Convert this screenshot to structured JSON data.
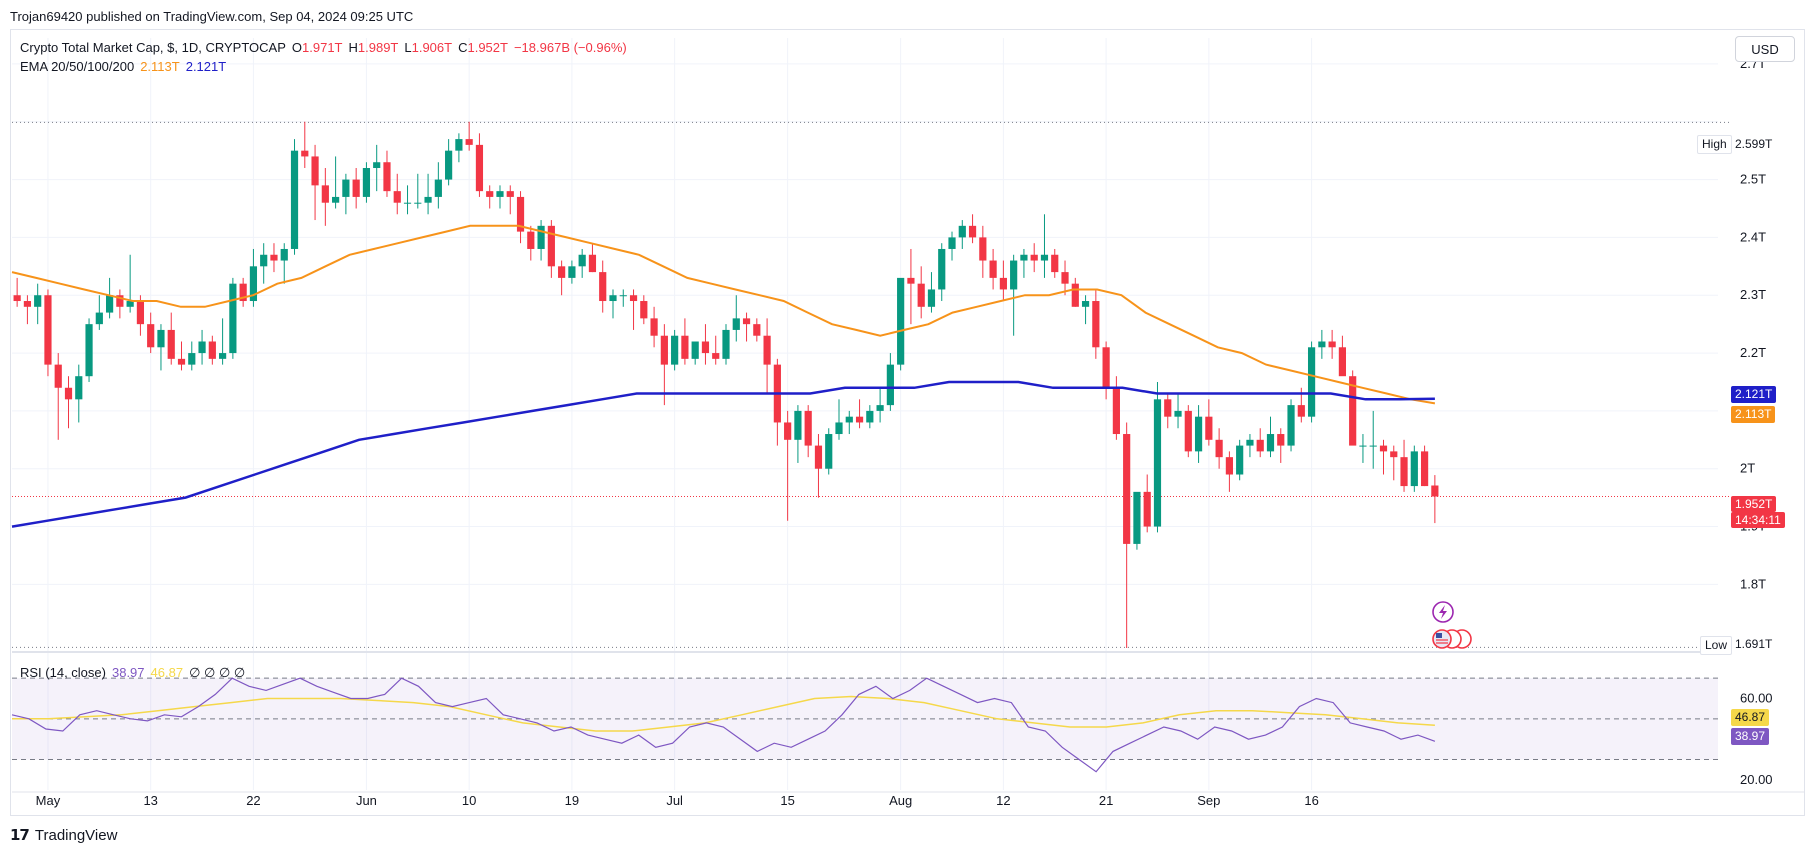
{
  "header": {
    "published": "Trojan69420 published on TradingView.com, Sep 04, 2024 09:25 UTC"
  },
  "legend": {
    "symbol": "Crypto Total Market Cap, $, 1D, CRYPTOCAP",
    "o_label": "O",
    "o_value": "1.971T",
    "h_label": "H",
    "h_value": "1.989T",
    "l_label": "L",
    "l_value": "1.906T",
    "c_label": "C",
    "c_value": "1.952T",
    "change": "−18.967B (−0.96%)",
    "ema_label": "EMA 20/50/100/200",
    "ema1_value": "2.113T",
    "ema2_value": "2.121T",
    "rsi_label": "RSI (14, close)",
    "rsi_value": "38.97",
    "rsi_ma_value": "46.87",
    "rsi_extra": "∅ ∅ ∅ ∅"
  },
  "currency_button": "USD",
  "price_axis": {
    "ticks": [
      "2.7T",
      "2.5T",
      "2.4T",
      "2.3T",
      "2.2T",
      "2T",
      "1.9T",
      "1.8T"
    ],
    "high_label": "High",
    "high_value": "2.599T",
    "low_label": "Low",
    "low_value": "1.691T",
    "ema200_tag": "2.121T",
    "ema50_tag": "2.113T",
    "last_price_tag": "1.952T",
    "countdown": "14:34:11"
  },
  "rsi_axis": {
    "ticks": [
      "60.00",
      "20.00"
    ],
    "ma_tag": "46.87",
    "rsi_tag": "38.97"
  },
  "time_axis": {
    "labels": [
      "May",
      "13",
      "22",
      "Jun",
      "10",
      "19",
      "Jul",
      "15",
      "Aug",
      "12",
      "21",
      "Sep",
      "16"
    ]
  },
  "footer": {
    "brand": "TradingView"
  },
  "colors": {
    "up": "#089981",
    "down": "#f23645",
    "ema50": "#f7931a",
    "ema200": "#1f1fc8",
    "rsi": "#7e57c2",
    "rsi_ma": "#f5d84a"
  },
  "chart_data": {
    "type": "candlestick",
    "title": "Crypto Total Market Cap, $, 1D, CRYPTOCAP",
    "x_range": [
      "2024-04-28",
      "2024-09-04"
    ],
    "y_range_trillions": [
      1.69,
      2.75
    ],
    "candles_trillions_ohlc": [
      [
        2.3,
        2.33,
        2.28,
        2.29
      ],
      [
        2.29,
        2.3,
        2.25,
        2.28
      ],
      [
        2.28,
        2.32,
        2.25,
        2.3
      ],
      [
        2.3,
        2.31,
        2.16,
        2.18
      ],
      [
        2.18,
        2.2,
        2.05,
        2.14
      ],
      [
        2.14,
        2.16,
        2.07,
        2.12
      ],
      [
        2.12,
        2.18,
        2.08,
        2.16
      ],
      [
        2.16,
        2.26,
        2.15,
        2.25
      ],
      [
        2.25,
        2.3,
        2.24,
        2.27
      ],
      [
        2.27,
        2.33,
        2.26,
        2.3
      ],
      [
        2.3,
        2.31,
        2.26,
        2.28
      ],
      [
        2.28,
        2.37,
        2.27,
        2.29
      ],
      [
        2.29,
        2.3,
        2.23,
        2.25
      ],
      [
        2.25,
        2.27,
        2.2,
        2.21
      ],
      [
        2.21,
        2.25,
        2.17,
        2.24
      ],
      [
        2.24,
        2.27,
        2.18,
        2.19
      ],
      [
        2.19,
        2.22,
        2.17,
        2.18
      ],
      [
        2.18,
        2.22,
        2.17,
        2.2
      ],
      [
        2.2,
        2.24,
        2.18,
        2.22
      ],
      [
        2.22,
        2.23,
        2.18,
        2.19
      ],
      [
        2.19,
        2.26,
        2.18,
        2.2
      ],
      [
        2.2,
        2.33,
        2.19,
        2.32
      ],
      [
        2.32,
        2.33,
        2.28,
        2.29
      ],
      [
        2.29,
        2.38,
        2.28,
        2.35
      ],
      [
        2.35,
        2.39,
        2.32,
        2.37
      ],
      [
        2.37,
        2.39,
        2.34,
        2.36
      ],
      [
        2.36,
        2.39,
        2.32,
        2.38
      ],
      [
        2.38,
        2.57,
        2.37,
        2.55
      ],
      [
        2.55,
        2.6,
        2.52,
        2.54
      ],
      [
        2.54,
        2.56,
        2.43,
        2.49
      ],
      [
        2.49,
        2.52,
        2.42,
        2.46
      ],
      [
        2.46,
        2.54,
        2.45,
        2.47
      ],
      [
        2.47,
        2.51,
        2.44,
        2.5
      ],
      [
        2.5,
        2.52,
        2.45,
        2.47
      ],
      [
        2.47,
        2.53,
        2.46,
        2.52
      ],
      [
        2.52,
        2.56,
        2.48,
        2.53
      ],
      [
        2.53,
        2.55,
        2.47,
        2.48
      ],
      [
        2.48,
        2.51,
        2.44,
        2.46
      ],
      [
        2.46,
        2.49,
        2.44,
        2.46
      ],
      [
        2.46,
        2.51,
        2.45,
        2.46
      ],
      [
        2.46,
        2.51,
        2.44,
        2.47
      ],
      [
        2.47,
        2.53,
        2.45,
        2.5
      ],
      [
        2.5,
        2.57,
        2.49,
        2.55
      ],
      [
        2.55,
        2.58,
        2.53,
        2.57
      ],
      [
        2.57,
        2.6,
        2.55,
        2.56
      ],
      [
        2.56,
        2.58,
        2.47,
        2.48
      ],
      [
        2.48,
        2.49,
        2.45,
        2.47
      ],
      [
        2.47,
        2.49,
        2.45,
        2.48
      ],
      [
        2.48,
        2.49,
        2.44,
        2.47
      ],
      [
        2.47,
        2.48,
        2.39,
        2.41
      ],
      [
        2.41,
        2.42,
        2.36,
        2.38
      ],
      [
        2.38,
        2.43,
        2.36,
        2.42
      ],
      [
        2.42,
        2.43,
        2.33,
        2.35
      ],
      [
        2.35,
        2.36,
        2.3,
        2.33
      ],
      [
        2.33,
        2.36,
        2.32,
        2.35
      ],
      [
        2.35,
        2.38,
        2.33,
        2.37
      ],
      [
        2.37,
        2.39,
        2.34,
        2.34
      ],
      [
        2.34,
        2.36,
        2.27,
        2.29
      ],
      [
        2.29,
        2.31,
        2.26,
        2.3
      ],
      [
        2.3,
        2.31,
        2.28,
        2.3
      ],
      [
        2.3,
        2.31,
        2.24,
        2.29
      ],
      [
        2.29,
        2.3,
        2.25,
        2.26
      ],
      [
        2.26,
        2.28,
        2.21,
        2.23
      ],
      [
        2.23,
        2.25,
        2.11,
        2.18
      ],
      [
        2.18,
        2.24,
        2.17,
        2.23
      ],
      [
        2.23,
        2.26,
        2.18,
        2.19
      ],
      [
        2.19,
        2.22,
        2.18,
        2.22
      ],
      [
        2.22,
        2.25,
        2.18,
        2.2
      ],
      [
        2.2,
        2.23,
        2.18,
        2.19
      ],
      [
        2.19,
        2.25,
        2.18,
        2.24
      ],
      [
        2.24,
        2.3,
        2.22,
        2.26
      ],
      [
        2.26,
        2.27,
        2.22,
        2.25
      ],
      [
        2.25,
        2.26,
        2.22,
        2.23
      ],
      [
        2.23,
        2.26,
        2.13,
        2.18
      ],
      [
        2.18,
        2.19,
        2.04,
        2.08
      ],
      [
        2.08,
        2.1,
        1.91,
        2.05
      ],
      [
        2.05,
        2.11,
        2.01,
        2.1
      ],
      [
        2.1,
        2.11,
        2.02,
        2.04
      ],
      [
        2.04,
        2.06,
        1.95,
        2.0
      ],
      [
        2.0,
        2.07,
        1.99,
        2.06
      ],
      [
        2.06,
        2.12,
        2.05,
        2.08
      ],
      [
        2.08,
        2.1,
        2.06,
        2.09
      ],
      [
        2.09,
        2.12,
        2.07,
        2.08
      ],
      [
        2.08,
        2.11,
        2.07,
        2.1
      ],
      [
        2.1,
        2.14,
        2.08,
        2.11
      ],
      [
        2.11,
        2.2,
        2.1,
        2.18
      ],
      [
        2.18,
        2.26,
        2.17,
        2.33
      ],
      [
        2.33,
        2.38,
        2.25,
        2.32
      ],
      [
        2.32,
        2.35,
        2.26,
        2.28
      ],
      [
        2.28,
        2.34,
        2.27,
        2.31
      ],
      [
        2.31,
        2.39,
        2.29,
        2.38
      ],
      [
        2.38,
        2.41,
        2.36,
        2.4
      ],
      [
        2.4,
        2.43,
        2.38,
        2.42
      ],
      [
        2.42,
        2.44,
        2.39,
        2.4
      ],
      [
        2.4,
        2.42,
        2.33,
        2.36
      ],
      [
        2.36,
        2.38,
        2.31,
        2.33
      ],
      [
        2.33,
        2.36,
        2.29,
        2.31
      ],
      [
        2.31,
        2.37,
        2.23,
        2.36
      ],
      [
        2.36,
        2.38,
        2.33,
        2.37
      ],
      [
        2.37,
        2.39,
        2.34,
        2.36
      ],
      [
        2.36,
        2.44,
        2.33,
        2.37
      ],
      [
        2.37,
        2.38,
        2.33,
        2.34
      ],
      [
        2.34,
        2.36,
        2.3,
        2.32
      ],
      [
        2.32,
        2.33,
        2.28,
        2.28
      ],
      [
        2.28,
        2.3,
        2.25,
        2.29
      ],
      [
        2.29,
        2.31,
        2.19,
        2.21
      ],
      [
        2.21,
        2.22,
        2.12,
        2.14
      ],
      [
        2.14,
        2.16,
        2.05,
        2.06
      ],
      [
        2.06,
        2.08,
        1.69,
        1.87
      ],
      [
        1.87,
        1.95,
        1.86,
        1.96
      ],
      [
        1.96,
        1.99,
        1.89,
        1.9
      ],
      [
        1.9,
        2.15,
        1.89,
        2.12
      ],
      [
        2.12,
        2.13,
        2.07,
        2.09
      ],
      [
        2.09,
        2.13,
        2.07,
        2.1
      ],
      [
        2.1,
        2.11,
        2.02,
        2.03
      ],
      [
        2.03,
        2.11,
        2.01,
        2.09
      ],
      [
        2.09,
        2.12,
        2.04,
        2.05
      ],
      [
        2.05,
        2.07,
        2.0,
        2.02
      ],
      [
        2.02,
        2.03,
        1.96,
        1.99
      ],
      [
        1.99,
        2.05,
        1.98,
        2.04
      ],
      [
        2.04,
        2.06,
        2.02,
        2.05
      ],
      [
        2.05,
        2.07,
        2.02,
        2.03
      ],
      [
        2.03,
        2.09,
        2.02,
        2.06
      ],
      [
        2.06,
        2.07,
        2.01,
        2.04
      ],
      [
        2.04,
        2.12,
        2.03,
        2.11
      ],
      [
        2.11,
        2.14,
        2.08,
        2.09
      ],
      [
        2.09,
        2.22,
        2.08,
        2.21
      ],
      [
        2.21,
        2.24,
        2.19,
        2.22
      ],
      [
        2.22,
        2.24,
        2.19,
        2.21
      ],
      [
        2.21,
        2.23,
        2.17,
        2.16
      ],
      [
        2.16,
        2.17,
        2.08,
        2.04
      ],
      [
        2.04,
        2.06,
        2.01,
        2.04
      ],
      [
        2.04,
        2.1,
        2.0,
        2.04
      ],
      [
        2.04,
        2.05,
        1.99,
        2.03
      ],
      [
        2.03,
        2.04,
        1.98,
        2.02
      ],
      [
        2.02,
        2.05,
        1.96,
        1.97
      ],
      [
        1.97,
        2.04,
        1.96,
        2.03
      ],
      [
        2.03,
        2.04,
        1.97,
        1.97
      ],
      [
        1.971,
        1.989,
        1.906,
        1.952
      ]
    ],
    "ema50_trillions": [
      2.34,
      2.33,
      2.32,
      2.31,
      2.3,
      2.29,
      2.29,
      2.28,
      2.28,
      2.29,
      2.3,
      2.32,
      2.33,
      2.35,
      2.37,
      2.38,
      2.39,
      2.4,
      2.41,
      2.42,
      2.42,
      2.42,
      2.41,
      2.4,
      2.39,
      2.38,
      2.37,
      2.35,
      2.33,
      2.32,
      2.31,
      2.3,
      2.29,
      2.27,
      2.25,
      2.24,
      2.23,
      2.24,
      2.25,
      2.27,
      2.28,
      2.29,
      2.3,
      2.3,
      2.31,
      2.31,
      2.3,
      2.27,
      2.25,
      2.23,
      2.21,
      2.2,
      2.18,
      2.17,
      2.16,
      2.15,
      2.14,
      2.13,
      2.12,
      2.113
    ],
    "ema200_trillions": [
      1.9,
      1.91,
      1.92,
      1.93,
      1.94,
      1.95,
      1.97,
      1.99,
      2.01,
      2.03,
      2.05,
      2.06,
      2.07,
      2.08,
      2.09,
      2.1,
      2.11,
      2.12,
      2.13,
      2.13,
      2.13,
      2.13,
      2.13,
      2.13,
      2.14,
      2.14,
      2.14,
      2.15,
      2.15,
      2.15,
      2.14,
      2.14,
      2.14,
      2.13,
      2.13,
      2.13,
      2.13,
      2.13,
      2.13,
      2.12,
      2.12,
      2.121
    ],
    "rsi": [
      52,
      50,
      45,
      44,
      52,
      54,
      52,
      50,
      49,
      52,
      51,
      56,
      62,
      70,
      66,
      64,
      67,
      70,
      66,
      63,
      60,
      60,
      62,
      70,
      66,
      58,
      56,
      58,
      60,
      52,
      50,
      48,
      44,
      46,
      42,
      40,
      38,
      42,
      36,
      38,
      46,
      48,
      46,
      40,
      34,
      38,
      36,
      40,
      44,
      52,
      62,
      66,
      60,
      64,
      70,
      66,
      62,
      58,
      60,
      58,
      46,
      44,
      36,
      30,
      24,
      34,
      38,
      42,
      46,
      44,
      40,
      46,
      44,
      40,
      42,
      46,
      56,
      60,
      58,
      48,
      46,
      44,
      40,
      42,
      38.97
    ],
    "rsi_ma": [
      50,
      50,
      51,
      52,
      54,
      56,
      58,
      60,
      60,
      60,
      59,
      58,
      56,
      52,
      48,
      46,
      44,
      44,
      46,
      48,
      52,
      56,
      60,
      61,
      60,
      58,
      54,
      50,
      48,
      46,
      46,
      48,
      52,
      54,
      54,
      53,
      52,
      50,
      48,
      46.87
    ],
    "rsi_ylim": [
      15,
      75
    ]
  }
}
